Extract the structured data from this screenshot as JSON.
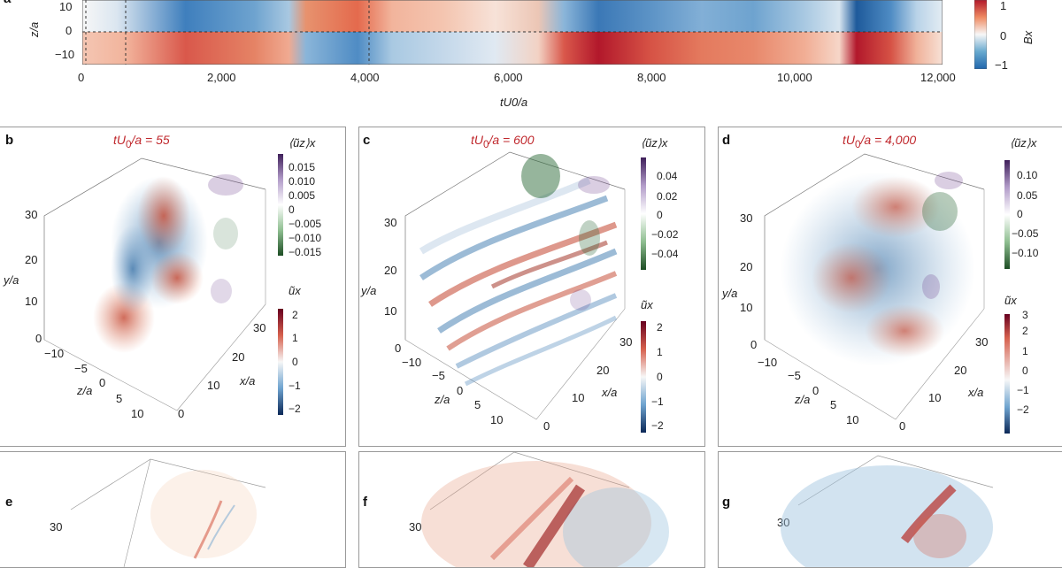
{
  "panel_a": {
    "label": "a",
    "ylabel": "z/a",
    "xlabel": "tU0/a",
    "xticks": [
      "0",
      "2,000",
      "4,000",
      "6,000",
      "8,000",
      "10,000",
      "12,000"
    ],
    "yticks": [
      "10",
      "0",
      "−10"
    ],
    "colorbar": {
      "label": "Bx",
      "ticks": [
        "1",
        "0",
        "−1"
      ]
    }
  },
  "panels": [
    {
      "label": "b",
      "title_prefix": "tU",
      "title_sub": "0",
      "title_suffix": "/a = 55",
      "uz_label": "⟨ũz⟩x",
      "uz_ticks": [
        "0.015",
        "0.010",
        "0.005",
        "0",
        "−0.005",
        "−0.010",
        "−0.015"
      ],
      "ux_label": "ũx",
      "ux_ticks": [
        "2",
        "1",
        "0",
        "−1",
        "−2"
      ],
      "y_ticks": [
        "30",
        "20",
        "10",
        "0"
      ],
      "z_ticks": [
        "−10",
        "−5",
        "0",
        "5",
        "10"
      ],
      "x_ticks": [
        "30",
        "20",
        "10",
        "0"
      ],
      "y_label": "y/a",
      "z_label": "z/a",
      "x_label": "x/a"
    },
    {
      "label": "c",
      "title_prefix": "tU",
      "title_sub": "0",
      "title_suffix": "/a = 600",
      "uz_label": "⟨ũz⟩x",
      "uz_ticks": [
        "0.04",
        "0.02",
        "0",
        "−0.02",
        "−0.04"
      ],
      "ux_label": "ũx",
      "ux_ticks": [
        "2",
        "1",
        "0",
        "−1",
        "−2"
      ],
      "y_ticks": [
        "30",
        "20",
        "10",
        "0"
      ],
      "z_ticks": [
        "−10",
        "−5",
        "0",
        "5",
        "10"
      ],
      "x_ticks": [
        "30",
        "20",
        "10",
        "0"
      ],
      "y_label": "y/a",
      "z_label": "z/a",
      "x_label": "x/a"
    },
    {
      "label": "d",
      "title_prefix": "tU",
      "title_sub": "0",
      "title_suffix": "/a = 4,000",
      "uz_label": "⟨ũz⟩x",
      "uz_ticks": [
        "0.10",
        "0.05",
        "0",
        "−0.05",
        "−0.10"
      ],
      "ux_label": "ũx",
      "ux_ticks": [
        "3",
        "2",
        "1",
        "0",
        "−1",
        "−2"
      ],
      "y_ticks": [
        "30",
        "20",
        "10",
        "0"
      ],
      "z_ticks": [
        "−10",
        "−5",
        "0",
        "5",
        "10"
      ],
      "x_ticks": [
        "30",
        "20",
        "10",
        "0"
      ],
      "y_label": "y/a",
      "z_label": "z/a",
      "x_label": "x/a"
    }
  ],
  "bottom_panels": [
    {
      "label": "e",
      "tick": "30"
    },
    {
      "label": "f",
      "tick": "30"
    },
    {
      "label": "g",
      "tick": "30"
    }
  ],
  "colors": {
    "red": "#b2182b",
    "blue": "#2166ac",
    "title_red": "#c0282d",
    "purple": "#6a3d8a",
    "green": "#2e6b3a"
  }
}
